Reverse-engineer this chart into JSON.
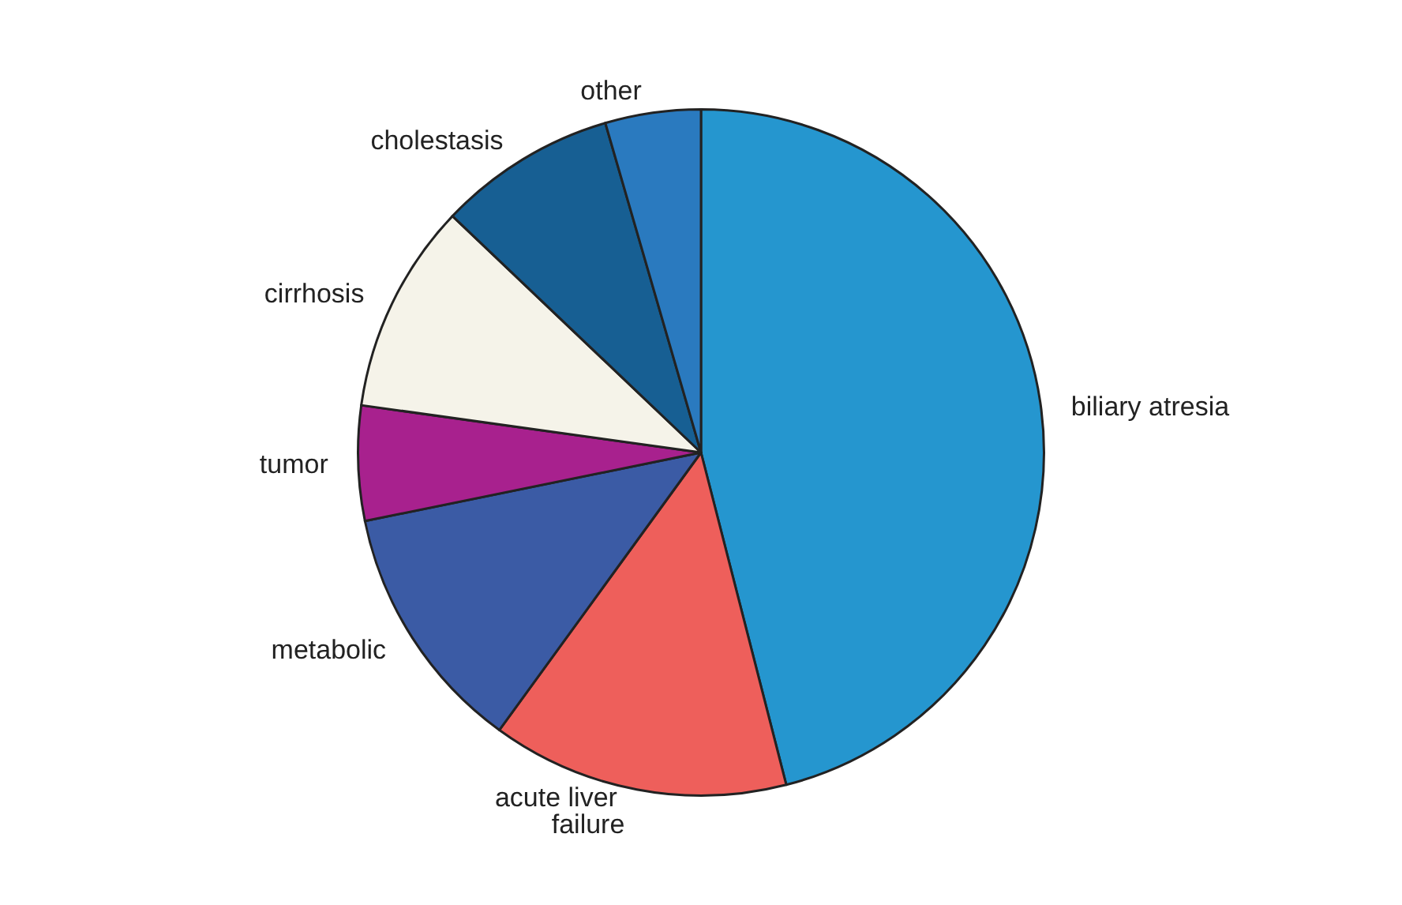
{
  "chart_data": {
    "type": "pie",
    "categories": [
      "biliary atresia",
      "acute liver failure",
      "metabolic",
      "tumor",
      "cirrhosis",
      "cholestasis",
      "other"
    ],
    "values": [
      46,
      14,
      11.8,
      5.4,
      9.9,
      8.4,
      4.5
    ],
    "colors": [
      "#2596cf",
      "#ee5f5b",
      "#3b5ba5",
      "#a8218e",
      "#f5f3e9",
      "#175f93",
      "#2a7abf"
    ],
    "legend": false
  }
}
